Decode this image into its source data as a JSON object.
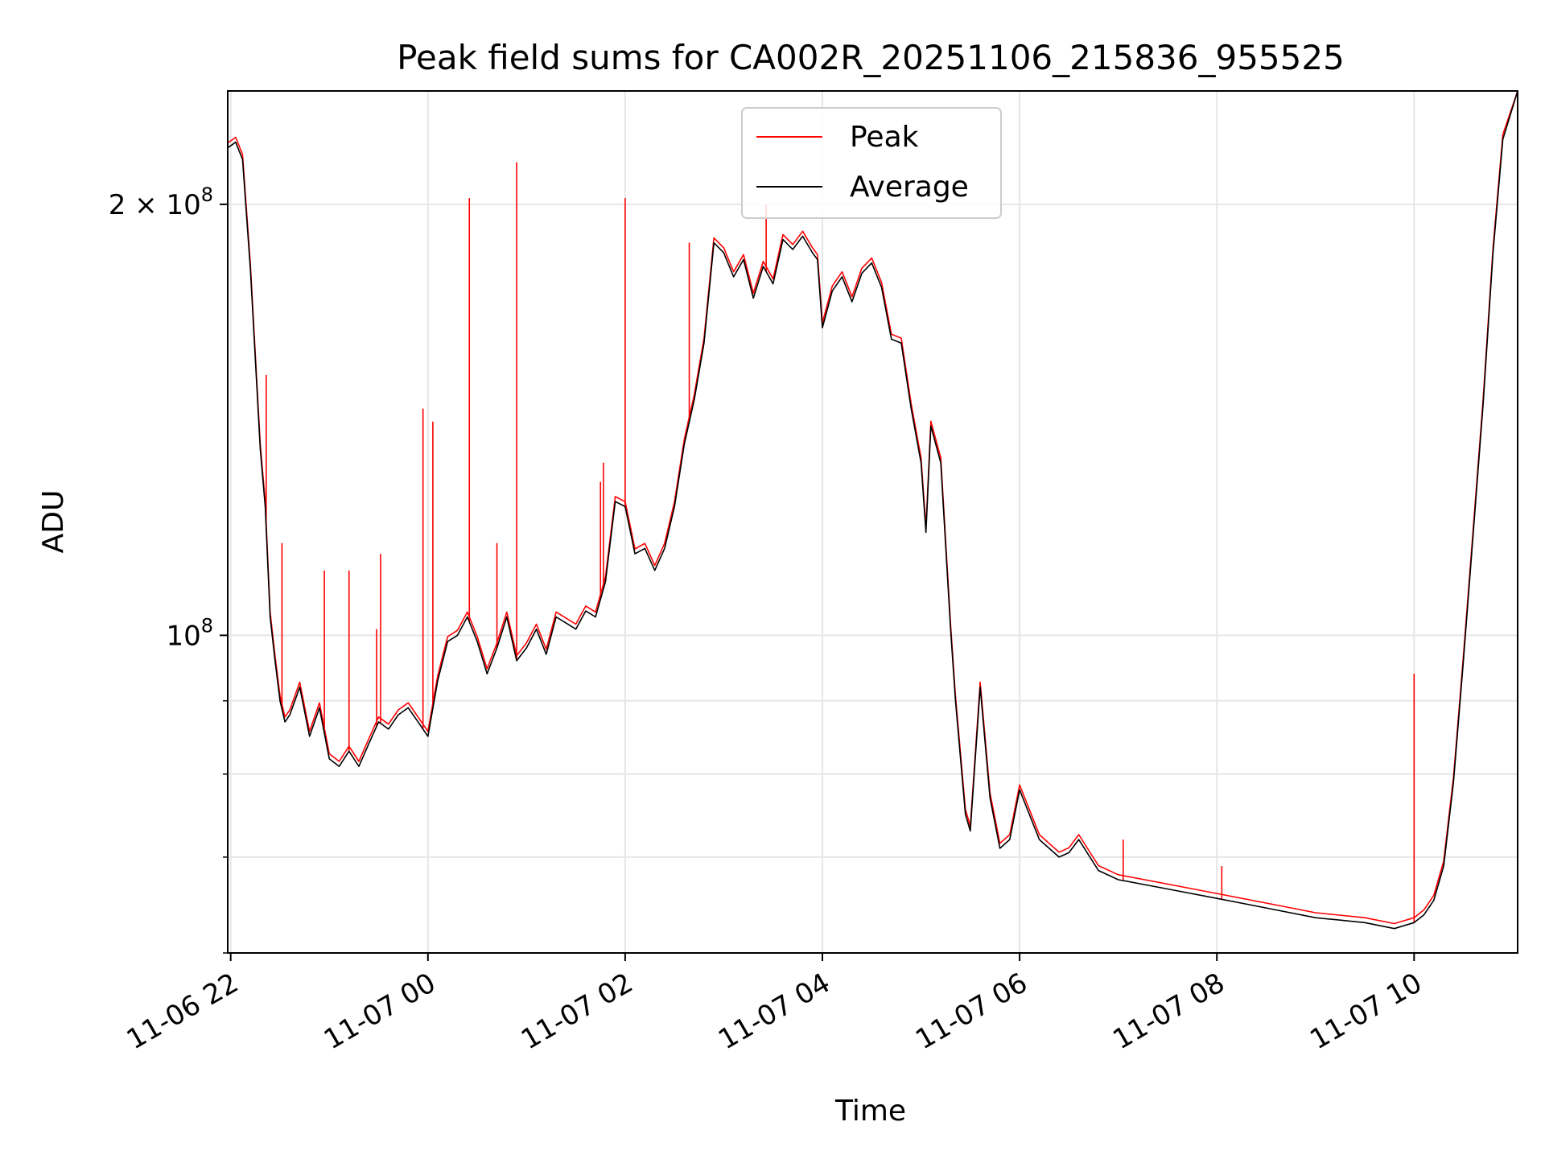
{
  "chart_data": {
    "type": "line",
    "title": "Peak field sums for CA002R_20251106_215836_955525",
    "xlabel": "Time",
    "ylabel": "ADU",
    "yscale": "log",
    "xlim": [
      21.97,
      35.05
    ],
    "ylim": [
      60000000,
      240000000
    ],
    "grid": true,
    "legend_position": "upper-center",
    "x_units": "hours since 2025-11-06 00:00",
    "x_ticks": [
      {
        "value": 22,
        "label": "11-06 22"
      },
      {
        "value": 24,
        "label": "11-07 00"
      },
      {
        "value": 26,
        "label": "11-07 02"
      },
      {
        "value": 28,
        "label": "11-07 04"
      },
      {
        "value": 30,
        "label": "11-07 06"
      },
      {
        "value": 32,
        "label": "11-07 08"
      },
      {
        "value": 34,
        "label": "11-07 10"
      }
    ],
    "y_ticks": [
      {
        "value": 100000000,
        "base": "10",
        "exp": "8",
        "mantissa": ""
      },
      {
        "value": 200000000,
        "base": "10",
        "exp": "8",
        "mantissa": "2 × "
      }
    ],
    "y_minor_ticks": [
      60000000,
      70000000,
      80000000,
      90000000
    ],
    "series": [
      {
        "name": "Average",
        "color": "#000000",
        "x": [
          21.97,
          22.05,
          22.12,
          22.2,
          22.3,
          22.35,
          22.4,
          22.45,
          22.5,
          22.55,
          22.6,
          22.7,
          22.8,
          22.9,
          23.0,
          23.1,
          23.2,
          23.3,
          23.4,
          23.5,
          23.6,
          23.7,
          23.8,
          23.9,
          24.0,
          24.1,
          24.2,
          24.3,
          24.4,
          24.5,
          24.6,
          24.7,
          24.8,
          24.9,
          25.0,
          25.1,
          25.2,
          25.3,
          25.4,
          25.5,
          25.6,
          25.7,
          25.8,
          25.9,
          26.0,
          26.1,
          26.2,
          26.3,
          26.4,
          26.5,
          26.6,
          26.7,
          26.8,
          26.9,
          27.0,
          27.1,
          27.2,
          27.3,
          27.4,
          27.5,
          27.6,
          27.7,
          27.8,
          27.9,
          27.95,
          28.0,
          28.1,
          28.2,
          28.3,
          28.4,
          28.5,
          28.6,
          28.7,
          28.8,
          28.9,
          29.0,
          29.05,
          29.1,
          29.2,
          29.3,
          29.35,
          29.45,
          29.5,
          29.6,
          29.7,
          29.8,
          29.9,
          30.0,
          30.2,
          30.4,
          30.5,
          30.6,
          30.8,
          31.0,
          31.5,
          32.0,
          32.5,
          33.0,
          33.2,
          33.5,
          33.8,
          34.0,
          34.1,
          34.2,
          34.3,
          34.4,
          34.5,
          34.6,
          34.7,
          34.8,
          34.9,
          35.05
        ],
        "values": [
          219000000,
          221000000,
          215000000,
          180000000,
          135000000,
          123000000,
          103000000,
          96000000,
          90000000,
          87000000,
          88000000,
          92000000,
          85000000,
          89000000,
          82000000,
          81000000,
          83000000,
          81000000,
          84000000,
          87000000,
          86000000,
          88000000,
          89000000,
          87000000,
          85000000,
          93000000,
          99000000,
          100000000,
          103000000,
          99000000,
          94000000,
          98000000,
          103000000,
          96000000,
          98000000,
          101000000,
          97000000,
          103000000,
          102000000,
          101000000,
          104000000,
          103000000,
          109000000,
          124000000,
          123000000,
          114000000,
          115000000,
          111000000,
          115000000,
          123000000,
          136000000,
          146000000,
          160000000,
          188000000,
          185000000,
          178000000,
          183000000,
          172000000,
          181000000,
          176000000,
          189000000,
          186000000,
          190000000,
          185000000,
          183000000,
          164000000,
          174000000,
          178000000,
          171000000,
          179000000,
          182000000,
          175000000,
          161000000,
          160000000,
          144000000,
          132000000,
          118000000,
          140000000,
          132000000,
          101000000,
          90000000,
          75000000,
          73000000,
          92000000,
          77000000,
          71000000,
          72000000,
          78000000,
          72000000,
          70000000,
          70500000,
          72000000,
          68500000,
          67500000,
          66500000,
          65500000,
          64500000,
          63500000,
          63300000,
          63000000,
          62400000,
          63000000,
          63800000,
          65300000,
          69000000,
          79000000,
          96000000,
          118000000,
          145000000,
          185000000,
          222000000,
          240000000
        ]
      },
      {
        "name": "Peak",
        "color": "#ff0000",
        "spikes": [
          {
            "x": 22.36,
            "value": 152000000
          },
          {
            "x": 22.52,
            "value": 116000000
          },
          {
            "x": 22.95,
            "value": 111000000
          },
          {
            "x": 23.2,
            "value": 111000000
          },
          {
            "x": 23.48,
            "value": 101000000
          },
          {
            "x": 23.52,
            "value": 114000000
          },
          {
            "x": 23.95,
            "value": 144000000
          },
          {
            "x": 24.05,
            "value": 141000000
          },
          {
            "x": 24.42,
            "value": 202000000
          },
          {
            "x": 24.7,
            "value": 116000000
          },
          {
            "x": 24.9,
            "value": 214000000
          },
          {
            "x": 25.75,
            "value": 128000000
          },
          {
            "x": 25.78,
            "value": 132000000
          },
          {
            "x": 26.0,
            "value": 202000000
          },
          {
            "x": 26.65,
            "value": 188000000
          },
          {
            "x": 27.43,
            "value": 200000000
          },
          {
            "x": 31.05,
            "value": 72000000
          },
          {
            "x": 32.05,
            "value": 69000000
          },
          {
            "x": 34.0,
            "value": 94000000
          }
        ]
      }
    ]
  },
  "legend": {
    "items": [
      {
        "label": "Peak",
        "color": "#ff0000"
      },
      {
        "label": "Average",
        "color": "#000000"
      }
    ]
  }
}
